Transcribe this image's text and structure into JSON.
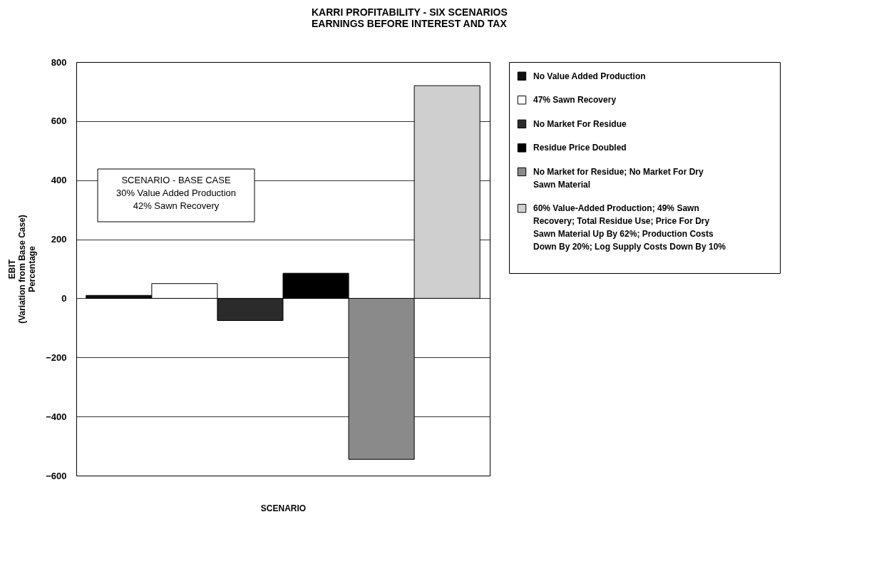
{
  "chart_data": {
    "type": "bar",
    "title": "KARRI PROFITABILITY - SIX SCENARIOS\nEARNINGS BEFORE INTEREST AND TAX",
    "xlabel": "SCENARIO",
    "ylabel": "EBIT\n(Variation from Base Case)\nPercentage",
    "categories": [
      null,
      null,
      null,
      null,
      null,
      null
    ],
    "series": [
      {
        "name": "No Value Added Production",
        "color": "#111111",
        "values": [
          10,
          null,
          null,
          null,
          null,
          null
        ]
      },
      {
        "name": "47% Sawn Recovery",
        "color": "#ffffff",
        "values": [
          null,
          50,
          null,
          null,
          null,
          null
        ]
      },
      {
        "name": "No Market For Residue",
        "color": "#2b2b2b",
        "values": [
          null,
          null,
          -75,
          null,
          null,
          null
        ]
      },
      {
        "name": "Residue Price Doubled",
        "color": "#000000",
        "values": [
          null,
          null,
          null,
          85,
          null,
          null
        ]
      },
      {
        "name": "No Market for Residue; No Market For Dry Sawn Material",
        "color": "#8a8a8a",
        "values": [
          null,
          null,
          null,
          null,
          -545,
          null
        ]
      },
      {
        "name": "60% Value-Added Production; 49% Sawn Recovery; Total Residue Use; Price For Dry Sawn Material Up By 62%; Production Costs Down By 20%; Log Supply Costs Down By 10%",
        "color": "#cfcfcf",
        "values": [
          null,
          null,
          null,
          null,
          null,
          720
        ]
      }
    ],
    "ylim": [
      -600,
      800
    ],
    "yticks": [
      -600,
      -400,
      -200,
      0,
      200,
      400,
      600,
      800
    ],
    "grid": "y",
    "legend": "right",
    "annotations": [
      "SCENARIO - BASE CASE\n30% Value Added Production\n42% Sawn Recovery"
    ]
  }
}
